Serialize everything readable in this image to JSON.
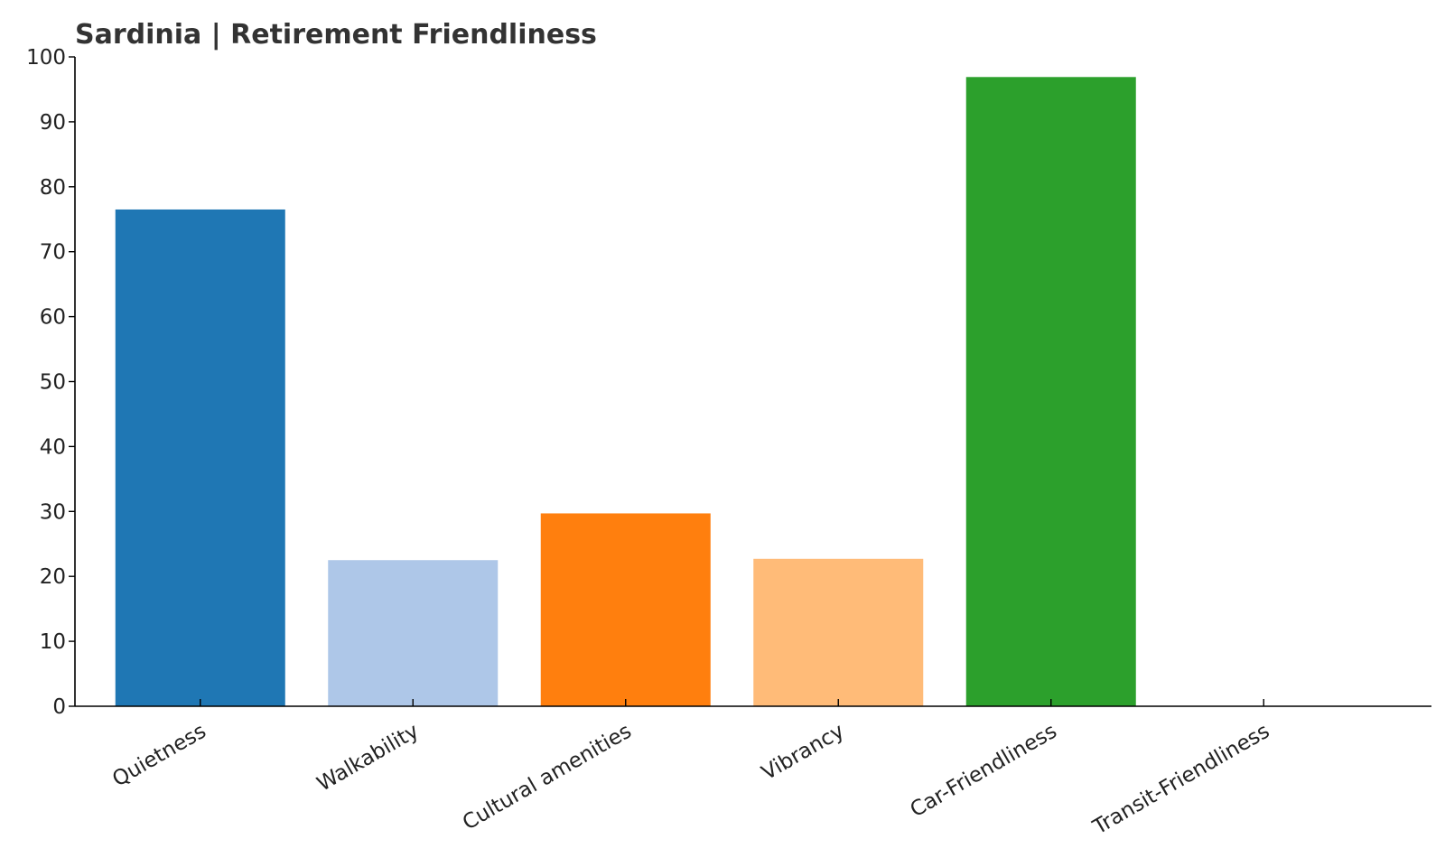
{
  "chart_data": {
    "type": "bar",
    "title": "Sardinia | Retirement Friendliness",
    "xlabel": "",
    "ylabel": "",
    "categories": [
      "Quietness",
      "Walkability",
      "Cultural amenities",
      "Vibrancy",
      "Car-Friendliness",
      "Transit-Friendliness"
    ],
    "values": [
      76.5,
      22.5,
      29.7,
      22.7,
      96.9,
      0
    ],
    "colors": [
      "#1f77b4",
      "#aec7e8",
      "#ff7f0e",
      "#ffbb78",
      "#2ca02c",
      "#98df8a"
    ],
    "ylim": [
      0,
      100
    ],
    "yticks": [
      0,
      10,
      20,
      30,
      40,
      50,
      60,
      70,
      80,
      90,
      100
    ],
    "xtick_rotation_deg": -30,
    "grid": false,
    "legend": "none"
  }
}
